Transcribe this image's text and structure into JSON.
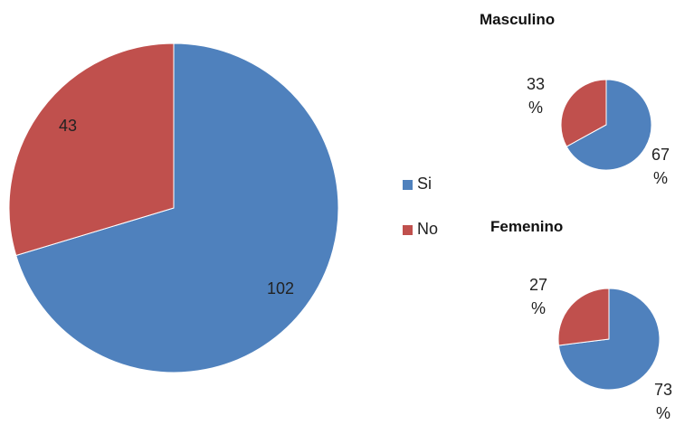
{
  "chart_data": [
    {
      "type": "pie",
      "categories": [
        "Si",
        "No"
      ],
      "values": [
        102,
        43
      ],
      "colors": [
        "#4f81bd",
        "#c0504d"
      ],
      "legend": "right"
    },
    {
      "type": "pie",
      "title": "Masculino",
      "categories": [
        "Si",
        "No"
      ],
      "values": [
        67,
        33
      ],
      "value_labels": [
        "67 %",
        "33 %"
      ],
      "colors": [
        "#4f81bd",
        "#c0504d"
      ]
    },
    {
      "type": "pie",
      "title": "Femenino",
      "categories": [
        "Si",
        "No"
      ],
      "values": [
        73,
        27
      ],
      "value_labels": [
        "73 %",
        "27 %"
      ],
      "colors": [
        "#4f81bd",
        "#c0504d"
      ]
    }
  ]
}
